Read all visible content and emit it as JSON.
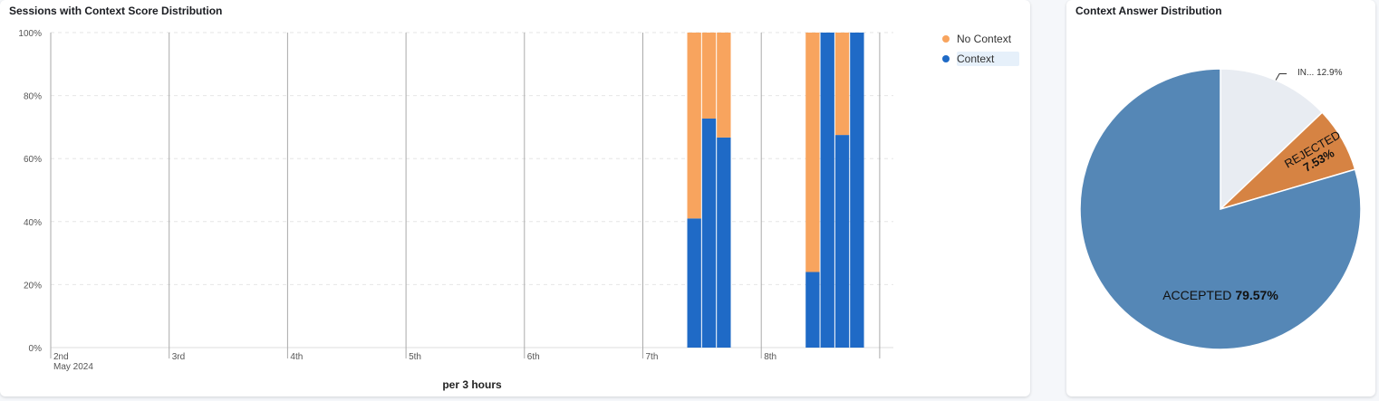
{
  "chart_data": [
    {
      "type": "bar",
      "stacked": true,
      "title": "Sessions with Context Score Distribution",
      "xlabel": "per 3 hours",
      "x_ticks": [
        "2nd",
        "3rd",
        "4th",
        "5th",
        "6th",
        "7th",
        "8th"
      ],
      "x_tick_sub": "May 2024",
      "y_ticks": [
        "0%",
        "20%",
        "40%",
        "60%",
        "80%",
        "100%"
      ],
      "ylim": [
        0,
        100
      ],
      "grid": true,
      "legend": "top-right",
      "categories": [
        "2024-05-07 09:00",
        "2024-05-07 12:00",
        "2024-05-07 15:00",
        "2024-05-08 09:00",
        "2024-05-08 12:00",
        "2024-05-08 15:00",
        "2024-05-08 18:00"
      ],
      "series": [
        {
          "name": "Context",
          "color": "#1f6ac6",
          "values": [
            41,
            72.7,
            66.7,
            24,
            100,
            67.5,
            100
          ]
        },
        {
          "name": "No Context",
          "color": "#f8a45e",
          "values": [
            59,
            27.3,
            33.3,
            76,
            0,
            32.5,
            0
          ]
        }
      ],
      "legend_order": [
        "No Context",
        "Context"
      ]
    },
    {
      "type": "pie",
      "title": "Context Answer Distribution",
      "slices": [
        {
          "label": "IN...",
          "value": 12.9,
          "display": "12.9%",
          "color": "#e8ecf2"
        },
        {
          "label": "REJECTED",
          "value": 7.53,
          "display": "7.53%",
          "color": "#d68343"
        },
        {
          "label": "ACCEPTED",
          "value": 79.57,
          "display": "79.57%",
          "color": "#5587b6"
        }
      ]
    }
  ]
}
